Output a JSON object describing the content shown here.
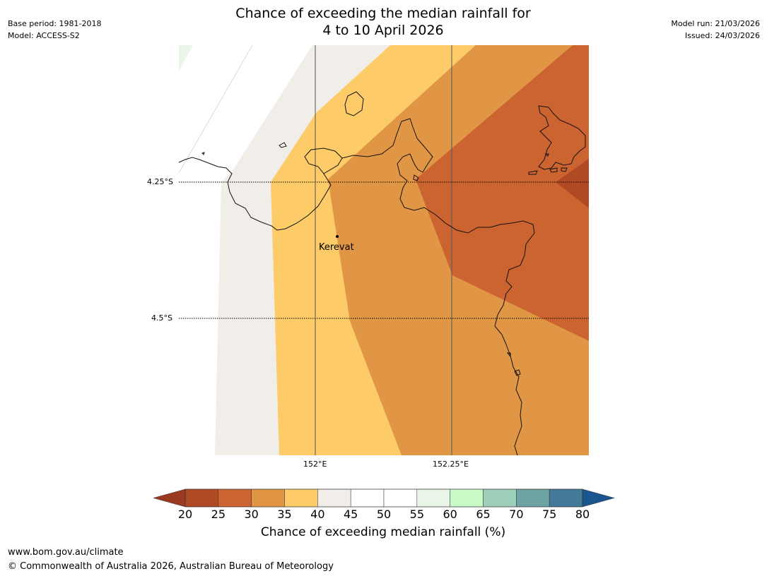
{
  "title_line1": "Chance of exceeding the median rainfall for",
  "title_line2": "4 to 10 April 2026",
  "meta_left": {
    "base_period": "Base period: 1981-2018",
    "model": "Model: ACCESS-S2"
  },
  "meta_right": {
    "model_run": "Model run: 21/03/2026",
    "issued": "Issued: 24/03/2026"
  },
  "axes": {
    "lat_labels": [
      "4.25°S",
      "4.5°S"
    ],
    "lon_labels": [
      "152°E",
      "152.25°E"
    ]
  },
  "place": {
    "name": "Kerevat"
  },
  "colorbar": {
    "title": "Chance of exceeding median rainfall (%)",
    "ticks": [
      "20",
      "25",
      "30",
      "35",
      "40",
      "45",
      "50",
      "55",
      "60",
      "65",
      "70",
      "75",
      "80"
    ],
    "colors": [
      "#b04a25",
      "#cc6431",
      "#e09645",
      "#fdcb67",
      "#f1ede9",
      "#ffffff",
      "#ffffff",
      "#e9f6e7",
      "#c8fac8",
      "#9dcfba",
      "#6ea3a4",
      "#427a97"
    ],
    "under_color": "#9a3a20",
    "over_color": "#1a5590"
  },
  "legend_categories": [
    {
      "range": "20-25",
      "color": "#b04a25"
    },
    {
      "range": "25-30",
      "color": "#cc6431"
    },
    {
      "range": "30-35",
      "color": "#e09645"
    },
    {
      "range": "35-40",
      "color": "#fdcb67"
    },
    {
      "range": "40-45",
      "color": "#f1ede9"
    }
  ],
  "footer": {
    "url": "www.bom.gov.au/climate",
    "copyright": "© Commonwealth of Australia 2026, Australian Bureau of Meteorology"
  }
}
